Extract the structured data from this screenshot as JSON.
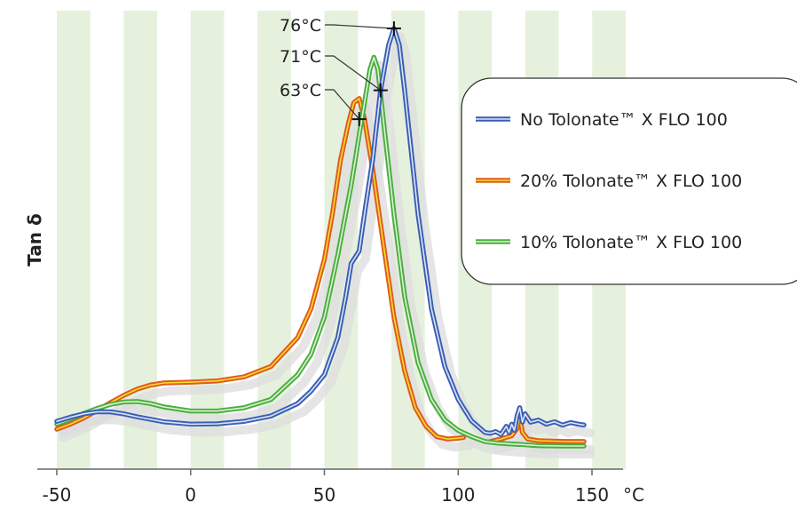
{
  "chart_data": {
    "type": "line",
    "title": "",
    "xlabel": "",
    "x_unit": "°C",
    "ylabel": "Tan δ",
    "xlim": [
      -50,
      150
    ],
    "ylim": [
      0,
      1
    ],
    "y_ticks_shown": false,
    "x_ticks": [
      -50,
      0,
      50,
      100,
      150
    ],
    "x_tick_labels": [
      "-50",
      "0",
      "50",
      "100",
      "150"
    ],
    "grid": "vertical-bands",
    "legend_position": "right",
    "colors": {
      "band": "#e6f1dd",
      "shadow": "#dcdcdc",
      "axis": "#666666"
    },
    "series": [
      {
        "name": "No Tolonate™ X FLO 100",
        "color": "#3b5eb5",
        "inner": "#dbe6f7",
        "points": [
          [
            -50,
            0.047
          ],
          [
            -45,
            0.057
          ],
          [
            -40,
            0.065
          ],
          [
            -35,
            0.07
          ],
          [
            -30,
            0.07
          ],
          [
            -25,
            0.065
          ],
          [
            -20,
            0.058
          ],
          [
            -10,
            0.046
          ],
          [
            0,
            0.04
          ],
          [
            10,
            0.041
          ],
          [
            20,
            0.047
          ],
          [
            30,
            0.06
          ],
          [
            40,
            0.09
          ],
          [
            45,
            0.12
          ],
          [
            50,
            0.16
          ],
          [
            55,
            0.25
          ],
          [
            58,
            0.35
          ],
          [
            60,
            0.43
          ],
          [
            63,
            0.46
          ],
          [
            65,
            0.55
          ],
          [
            68,
            0.68
          ],
          [
            71,
            0.85
          ],
          [
            74,
            0.96
          ],
          [
            76,
            1.0
          ],
          [
            78,
            0.96
          ],
          [
            80,
            0.85
          ],
          [
            85,
            0.55
          ],
          [
            90,
            0.32
          ],
          [
            95,
            0.18
          ],
          [
            100,
            0.1
          ],
          [
            105,
            0.048
          ],
          [
            110,
            0.02
          ],
          [
            112,
            0.018
          ],
          [
            114,
            0.022
          ],
          [
            116,
            0.015
          ],
          [
            118,
            0.035
          ],
          [
            119,
            0.02
          ],
          [
            120,
            0.04
          ],
          [
            121,
            0.025
          ],
          [
            122,
            0.06
          ],
          [
            123,
            0.08
          ],
          [
            124,
            0.045
          ],
          [
            125,
            0.065
          ],
          [
            127,
            0.045
          ],
          [
            130,
            0.05
          ],
          [
            133,
            0.04
          ],
          [
            136,
            0.046
          ],
          [
            139,
            0.038
          ],
          [
            142,
            0.044
          ],
          [
            145,
            0.04
          ],
          [
            147,
            0.038
          ]
        ]
      },
      {
        "name": "20% Tolonate™ X FLO 100",
        "color": "#e05a1e",
        "inner": "#f6dd2c",
        "points": [
          [
            -50,
            0.028
          ],
          [
            -45,
            0.04
          ],
          [
            -40,
            0.055
          ],
          [
            -35,
            0.073
          ],
          [
            -30,
            0.092
          ],
          [
            -25,
            0.11
          ],
          [
            -20,
            0.125
          ],
          [
            -15,
            0.135
          ],
          [
            -10,
            0.14
          ],
          [
            0,
            0.142
          ],
          [
            10,
            0.145
          ],
          [
            20,
            0.155
          ],
          [
            30,
            0.18
          ],
          [
            40,
            0.25
          ],
          [
            45,
            0.32
          ],
          [
            50,
            0.44
          ],
          [
            53,
            0.55
          ],
          [
            56,
            0.68
          ],
          [
            59,
            0.77
          ],
          [
            61,
            0.82
          ],
          [
            63,
            0.83
          ],
          [
            65,
            0.78
          ],
          [
            68,
            0.66
          ],
          [
            72,
            0.48
          ],
          [
            76,
            0.3
          ],
          [
            80,
            0.17
          ],
          [
            84,
            0.08
          ],
          [
            88,
            0.035
          ],
          [
            92,
            0.01
          ],
          [
            96,
            0.004
          ],
          [
            100,
            0.006
          ],
          [
            102,
            0.008
          ]
        ]
      },
      {
        "name": "10% Tolonate™ X FLO 100",
        "color": "#4aae3f",
        "inner": "#dcf2d4",
        "points": [
          [
            -50,
            0.04
          ],
          [
            -45,
            0.052
          ],
          [
            -40,
            0.066
          ],
          [
            -35,
            0.078
          ],
          [
            -30,
            0.088
          ],
          [
            -25,
            0.094
          ],
          [
            -20,
            0.095
          ],
          [
            -15,
            0.09
          ],
          [
            -10,
            0.082
          ],
          [
            0,
            0.072
          ],
          [
            10,
            0.072
          ],
          [
            20,
            0.08
          ],
          [
            30,
            0.1
          ],
          [
            40,
            0.16
          ],
          [
            45,
            0.21
          ],
          [
            50,
            0.3
          ],
          [
            55,
            0.45
          ],
          [
            60,
            0.62
          ],
          [
            63,
            0.74
          ],
          [
            65,
            0.82
          ],
          [
            67,
            0.9
          ],
          [
            68.5,
            0.93
          ],
          [
            70,
            0.9
          ],
          [
            72,
            0.78
          ],
          [
            76,
            0.55
          ],
          [
            80,
            0.35
          ],
          [
            85,
            0.19
          ],
          [
            90,
            0.1
          ],
          [
            95,
            0.05
          ],
          [
            100,
            0.025
          ],
          [
            105,
            0.01
          ],
          [
            110,
            -0.002
          ],
          [
            115,
            -0.006
          ],
          [
            120,
            -0.008
          ],
          [
            125,
            -0.01
          ],
          [
            130,
            -0.012
          ],
          [
            140,
            -0.013
          ],
          [
            147,
            -0.013
          ]
        ]
      },
      {
        "name": "",
        "color": "#e05a1e",
        "inner": "#f6dd2c",
        "points": [
          [
            112,
            -0.002
          ],
          [
            116,
            0.004
          ],
          [
            120,
            0.012
          ],
          [
            122,
            0.03
          ],
          [
            123,
            0.06
          ],
          [
            124,
            0.02
          ],
          [
            126,
            0.004
          ],
          [
            130,
            0.0
          ],
          [
            140,
            -0.002
          ],
          [
            147,
            -0.002
          ]
        ]
      }
    ],
    "annotations": [
      {
        "text": "76°C",
        "x": 76,
        "y": 1.0
      },
      {
        "text": "71°C",
        "x": 71,
        "y": 0.85
      },
      {
        "text": "63°C",
        "x": 63,
        "y": 0.78
      }
    ]
  }
}
